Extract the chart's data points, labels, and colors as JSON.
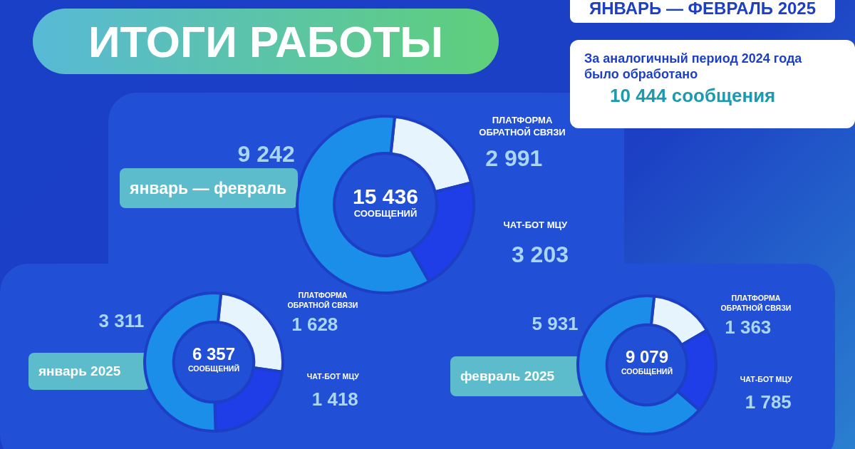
{
  "chart_data": [
    {
      "type": "donut",
      "title": "ИТОГИ РАБОТЫ",
      "subtitle": "ЯНВАРЬ — ФЕВРАЛЬ 2025",
      "categories": [
        "ПЛАТФОРМА ОБРАТНОЙ СВЯЗИ",
        "ЧАТ-БОТ МЦУ",
        null
      ],
      "values": [
        2991,
        3203,
        9242
      ],
      "colors": [
        "#e6f5fd",
        "#1f3ee8",
        "#1a8ee8"
      ],
      "value_labels": [
        "2 991",
        "3 203",
        "9 242"
      ],
      "annotations": [
        "январь — февраль",
        "15 436",
        "СООБЩЕНИЙ",
        "За аналогичный период 2024 года было обработано",
        "10 444 сообщения"
      ]
    },
    {
      "type": "donut",
      "categories": [
        "ПЛАТФОРМА ОБРАТНОЙ СВЯЗИ",
        "ЧАТ-БОТ МЦУ",
        null
      ],
      "values": [
        1628,
        1418,
        3311
      ],
      "colors": [
        "#e6f5fd",
        "#1f3ee8",
        "#1a8ee8"
      ],
      "value_labels": [
        "1 628",
        "1 418",
        "3 311"
      ],
      "annotations": [
        "январь 2025",
        "6 357",
        "СООБЩЕНИЙ"
      ]
    },
    {
      "type": "donut",
      "categories": [
        "ПЛАТФОРМА ОБРАТНОЙ СВЯЗИ",
        "ЧАТ-БОТ МЦУ",
        null
      ],
      "values": [
        1363,
        1785,
        5931
      ],
      "colors": [
        "#e6f5fd",
        "#1f3ee8",
        "#1a8ee8"
      ],
      "value_labels": [
        "1 363",
        "1 785",
        "5 931"
      ],
      "annotations": [
        "февраль 2025",
        "9 079",
        "СООБЩЕНИЙ"
      ]
    }
  ]
}
